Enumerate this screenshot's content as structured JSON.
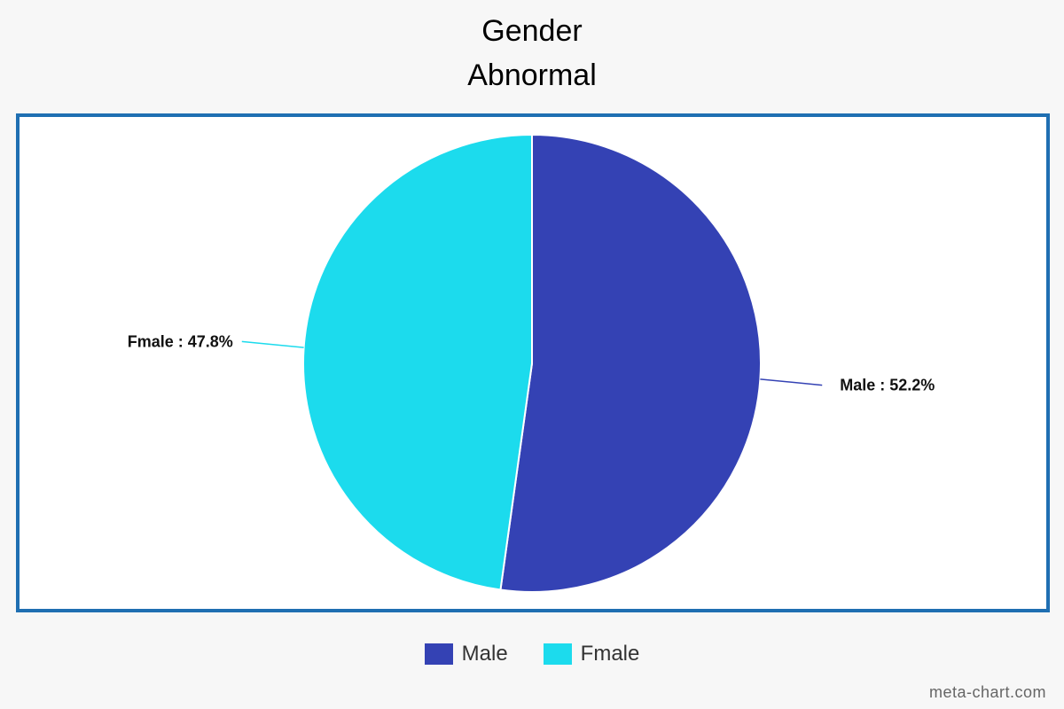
{
  "chart_data": {
    "type": "pie",
    "title": "Gender",
    "subtitle": "Abnormal",
    "slices": [
      {
        "name": "Male",
        "value": 52.2,
        "label": "Male : 52.2%",
        "color": "#3442b4"
      },
      {
        "name": "Fmale",
        "value": 47.8,
        "label": "Fmale : 47.8%",
        "color": "#1cdbed"
      }
    ],
    "legend": {
      "placement": "bottom-center",
      "items": [
        {
          "label": "Male",
          "color": "#3442b4"
        },
        {
          "label": "Fmale",
          "color": "#1cdbed"
        }
      ]
    }
  },
  "frame_color": "#1f6fb2",
  "watermark": "meta-chart.com"
}
